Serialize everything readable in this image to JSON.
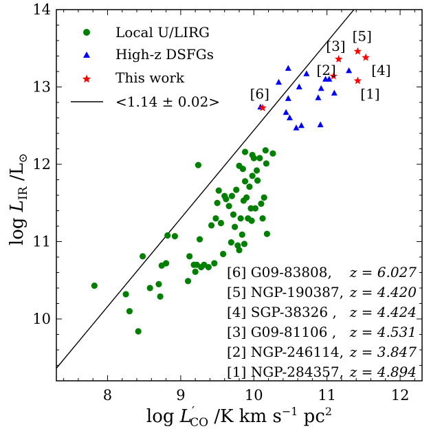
{
  "chart_data": {
    "type": "scatter",
    "xlabel": "log L′CO /K km s−1 pc2",
    "ylabel": "log LIR /L⊙",
    "xlim": [
      7.3,
      12.3
    ],
    "ylim": [
      9.2,
      14.0
    ],
    "x_ticks": [
      "8",
      "9",
      "10",
      "11",
      "12"
    ],
    "y_ticks": [
      "10",
      "11",
      "12",
      "13",
      "14"
    ],
    "grid": false,
    "legend_position": "top-left",
    "colors": {
      "local": "#007f00",
      "highz": "#0000ff",
      "thiswork": "#ff0000",
      "fit": "#000000"
    },
    "series": [
      {
        "name": "Local U/LIRG",
        "marker": "circle",
        "points": [
          [
            7.82,
            10.43
          ],
          [
            8.25,
            10.32
          ],
          [
            8.3,
            10.1
          ],
          [
            8.42,
            9.84
          ],
          [
            8.48,
            10.81
          ],
          [
            8.58,
            10.4
          ],
          [
            8.7,
            10.45
          ],
          [
            8.72,
            10.29
          ],
          [
            8.74,
            10.69
          ],
          [
            8.8,
            10.72
          ],
          [
            8.82,
            11.08
          ],
          [
            8.92,
            11.07
          ],
          [
            9.1,
            10.49
          ],
          [
            9.12,
            10.81
          ],
          [
            9.18,
            10.7
          ],
          [
            9.2,
            10.61
          ],
          [
            9.22,
            10.7
          ],
          [
            9.24,
            11.99
          ],
          [
            9.26,
            11.03
          ],
          [
            9.28,
            10.67
          ],
          [
            9.32,
            10.7
          ],
          [
            9.38,
            10.67
          ],
          [
            9.42,
            11.21
          ],
          [
            9.46,
            10.72
          ],
          [
            9.48,
            11.3
          ],
          [
            9.5,
            11.5
          ],
          [
            9.52,
            11.66
          ],
          [
            9.55,
            11.24
          ],
          [
            9.58,
            10.84
          ],
          [
            9.6,
            11.59
          ],
          [
            9.62,
            11.55
          ],
          [
            9.66,
            11.46
          ],
          [
            9.69,
            10.99
          ],
          [
            9.7,
            11.59
          ],
          [
            9.72,
            11.35
          ],
          [
            9.74,
            11.19
          ],
          [
            9.76,
            11.67
          ],
          [
            9.78,
            10.95
          ],
          [
            9.8,
            11.98
          ],
          [
            9.8,
            10.89
          ],
          [
            9.82,
            11.3
          ],
          [
            9.84,
            11.09
          ],
          [
            9.85,
            11.94
          ],
          [
            9.86,
            11.53
          ],
          [
            9.87,
            10.97
          ],
          [
            9.88,
            12.16
          ],
          [
            9.88,
            11.78
          ],
          [
            9.9,
            11.57
          ],
          [
            9.92,
            11.3
          ],
          [
            9.94,
            11.71
          ],
          [
            9.96,
            11.43
          ],
          [
            9.97,
            11.27
          ],
          [
            9.98,
            12.12
          ],
          [
            9.98,
            11.85
          ],
          [
            10.0,
            12.08
          ],
          [
            10.02,
            11.43
          ],
          [
            10.04,
            11.92
          ],
          [
            10.05,
            11.79
          ],
          [
            10.08,
            12.08
          ],
          [
            10.1,
            11.49
          ],
          [
            10.12,
            11.3
          ],
          [
            10.14,
            11.57
          ],
          [
            10.16,
            12.18
          ],
          [
            10.17,
            12.01
          ],
          [
            10.18,
            11.1
          ],
          [
            10.26,
            12.14
          ]
        ]
      },
      {
        "name": "High-z DSFGs",
        "marker": "triangle",
        "points": [
          [
            10.09,
            12.74
          ],
          [
            10.34,
            13.06
          ],
          [
            10.44,
            12.67
          ],
          [
            10.47,
            12.85
          ],
          [
            10.47,
            13.24
          ],
          [
            10.49,
            12.6
          ],
          [
            10.58,
            12.47
          ],
          [
            10.62,
            13.0
          ],
          [
            10.65,
            12.5
          ],
          [
            10.72,
            13.17
          ],
          [
            10.88,
            12.86
          ],
          [
            10.91,
            12.51
          ],
          [
            10.92,
            12.98
          ],
          [
            10.98,
            13.1
          ],
          [
            11.03,
            13.1
          ],
          [
            11.1,
            12.92
          ],
          [
            11.3,
            13.21
          ]
        ]
      },
      {
        "name": "This work",
        "marker": "star",
        "points": [
          [
            10.12,
            12.73
          ],
          [
            11.09,
            13.14
          ],
          [
            11.16,
            13.36
          ],
          [
            11.42,
            13.46
          ],
          [
            11.53,
            13.38
          ],
          [
            11.42,
            13.08
          ]
        ]
      }
    ],
    "fit_line": {
      "name": "<1.14 ± 0.02>",
      "slope": 1.14,
      "intercept": 1.04
    },
    "point_labels": [
      {
        "text": "[6]",
        "x": 10.08,
        "y": 12.91
      },
      {
        "text": "[2]",
        "x": 10.99,
        "y": 13.22
      },
      {
        "text": "[3]",
        "x": 11.12,
        "y": 13.53
      },
      {
        "text": "[5]",
        "x": 11.48,
        "y": 13.66
      },
      {
        "text": "[4]",
        "x": 11.74,
        "y": 13.22
      },
      {
        "text": "[1]",
        "x": 11.59,
        "y": 12.91
      }
    ],
    "annotations": [
      {
        "id": "[6]",
        "name": "G09-83808,",
        "z": "z = 6.027"
      },
      {
        "id": "[5]",
        "name": "NGP-190387,",
        "z": "z = 4.420"
      },
      {
        "id": "[4]",
        "name": "SGP-38326  ,",
        "z": "z = 4.424"
      },
      {
        "id": "[3]",
        "name": "G09-81106   ,",
        "z": "z = 4.531"
      },
      {
        "id": "[2]",
        "name": "NGP-246114,",
        "z": "z = 3.847"
      },
      {
        "id": "[1]",
        "name": "NGP-284357,",
        "z": "z = 4.894"
      }
    ]
  },
  "legend": {
    "local": "Local U/LIRG",
    "highz": "High-z DSFGs",
    "thiswork": "This work",
    "fit": "<1.14 ± 0.02>"
  },
  "axes": {
    "x_title": {
      "prefix": "log ",
      "symbol": "L",
      "prime": "′",
      "sub": "CO",
      "unit": " /K km s",
      "exp1": "−1",
      "unit2": " pc",
      "exp2": "2"
    },
    "y_title": {
      "prefix": "log ",
      "symbol": "L",
      "sub": "IR",
      "unit": " /L",
      "sun": "⊙"
    }
  }
}
